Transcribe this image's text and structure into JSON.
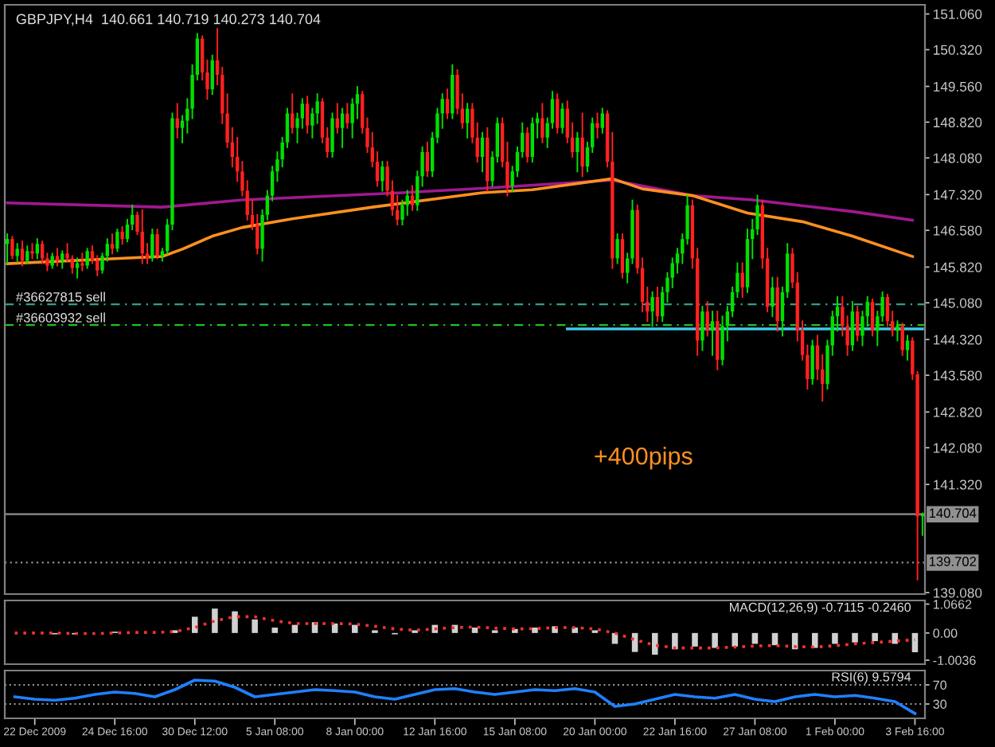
{
  "chart_data": [
    {
      "type": "candlestick",
      "title": "GBPJPY,H4  140.661 140.719 140.273 140.704",
      "categories": [
        null,
        null,
        null,
        null,
        null,
        null,
        null,
        null,
        null,
        null,
        null,
        null,
        null,
        null,
        null,
        null,
        null,
        null,
        null,
        null,
        null,
        null,
        null,
        null,
        null,
        null,
        null,
        null,
        null,
        null,
        null,
        null,
        null,
        null,
        null,
        null,
        null,
        null,
        null,
        null,
        null,
        null,
        null,
        null,
        null,
        null,
        null,
        null,
        null,
        null,
        null,
        null,
        null,
        null,
        null,
        null,
        null,
        null,
        null,
        null,
        null,
        null,
        null,
        null,
        null,
        null,
        null,
        null,
        null,
        null,
        null,
        null,
        null,
        null,
        null,
        null,
        null,
        null,
        null,
        null,
        null,
        null,
        null,
        null,
        null,
        null,
        null,
        null,
        null,
        null,
        null,
        null,
        null,
        null,
        null,
        null,
        null,
        null,
        null,
        null,
        null,
        null,
        null,
        null,
        null,
        null,
        null,
        null,
        null,
        null,
        null,
        null,
        null,
        null,
        null,
        null,
        null,
        null,
        null,
        null,
        null,
        null,
        null,
        null,
        null,
        null,
        null,
        null,
        null,
        null,
        null,
        null,
        null,
        null,
        null,
        null,
        null,
        null,
        null,
        null,
        null,
        null,
        null,
        null,
        null,
        null,
        null,
        null,
        null,
        null,
        null,
        null,
        null,
        null,
        null,
        null,
        null,
        null,
        null,
        null,
        null,
        null,
        null,
        null,
        null,
        null,
        null,
        null,
        null,
        null,
        null,
        null,
        null,
        null,
        null,
        null,
        null,
        null,
        null,
        null,
        null,
        null,
        null,
        null
      ],
      "ohlc": [
        [
          146.3,
          146.5,
          145.9,
          146.4
        ],
        [
          146.4,
          146.45,
          146.0,
          146.05
        ],
        [
          146.05,
          146.3,
          145.95,
          146.2
        ],
        [
          146.2,
          146.35,
          145.85,
          145.95
        ],
        [
          145.95,
          146.25,
          145.9,
          146.15
        ],
        [
          146.15,
          146.3,
          146.0,
          146.1
        ],
        [
          146.1,
          146.4,
          146.0,
          146.3
        ],
        [
          146.3,
          146.35,
          145.9,
          146.0
        ],
        [
          146.0,
          146.1,
          145.75,
          145.85
        ],
        [
          145.85,
          146.1,
          145.8,
          146.05
        ],
        [
          146.05,
          146.2,
          145.85,
          145.95
        ],
        [
          145.95,
          146.15,
          145.8,
          146.1
        ],
        [
          146.1,
          146.3,
          145.95,
          146.0
        ],
        [
          146.0,
          146.05,
          145.7,
          145.8
        ],
        [
          145.8,
          146.0,
          145.6,
          145.9
        ],
        [
          145.9,
          146.1,
          145.75,
          145.85
        ],
        [
          145.85,
          146.2,
          145.8,
          146.15
        ],
        [
          146.15,
          146.25,
          145.9,
          145.95
        ],
        [
          145.95,
          146.05,
          145.65,
          145.75
        ],
        [
          145.75,
          146.1,
          145.7,
          146.05
        ],
        [
          146.05,
          146.4,
          145.95,
          146.3
        ],
        [
          146.3,
          146.5,
          146.1,
          146.2
        ],
        [
          146.2,
          146.6,
          146.15,
          146.55
        ],
        [
          146.55,
          146.65,
          146.3,
          146.4
        ],
        [
          146.4,
          146.8,
          146.35,
          146.7
        ],
        [
          146.7,
          147.1,
          146.6,
          146.9
        ],
        [
          146.9,
          146.95,
          146.5,
          146.55
        ],
        [
          146.55,
          147.0,
          145.9,
          146.1
        ],
        [
          146.1,
          146.3,
          145.9,
          146.0
        ],
        [
          146.0,
          146.6,
          145.95,
          146.5
        ],
        [
          146.5,
          146.6,
          146.0,
          146.05
        ],
        [
          146.05,
          146.2,
          145.95,
          146.15
        ],
        [
          146.15,
          146.8,
          146.1,
          146.7
        ],
        [
          146.7,
          149.0,
          146.6,
          148.9
        ],
        [
          148.9,
          149.2,
          148.5,
          148.7
        ],
        [
          148.7,
          148.95,
          148.4,
          148.85
        ],
        [
          148.85,
          149.3,
          148.6,
          149.1
        ],
        [
          149.1,
          150.0,
          148.9,
          149.8
        ],
        [
          149.8,
          150.65,
          149.7,
          150.55
        ],
        [
          150.55,
          150.6,
          149.7,
          149.85
        ],
        [
          149.85,
          150.1,
          149.3,
          149.5
        ],
        [
          149.5,
          150.2,
          149.4,
          150.1
        ],
        [
          150.1,
          150.75,
          149.6,
          149.8
        ],
        [
          149.8,
          149.95,
          148.8,
          149.0
        ],
        [
          149.0,
          149.4,
          148.3,
          148.4
        ],
        [
          148.4,
          148.7,
          147.9,
          148.1
        ],
        [
          148.1,
          148.5,
          147.6,
          147.8
        ],
        [
          147.8,
          148.0,
          147.3,
          147.4
        ],
        [
          147.4,
          147.6,
          146.8,
          146.9
        ],
        [
          146.9,
          147.2,
          146.6,
          146.7
        ],
        [
          146.7,
          146.9,
          146.1,
          146.2
        ],
        [
          146.2,
          147.0,
          145.95,
          146.9
        ],
        [
          146.9,
          147.4,
          146.8,
          147.3
        ],
        [
          147.3,
          147.9,
          147.2,
          147.8
        ],
        [
          147.8,
          148.2,
          147.6,
          148.05
        ],
        [
          148.05,
          148.5,
          147.9,
          148.4
        ],
        [
          148.4,
          149.1,
          148.3,
          149.0
        ],
        [
          149.0,
          149.4,
          148.6,
          148.7
        ],
        [
          148.7,
          149.0,
          148.4,
          148.9
        ],
        [
          148.9,
          149.3,
          148.7,
          149.2
        ],
        [
          149.2,
          149.35,
          148.6,
          148.75
        ],
        [
          148.75,
          149.1,
          148.5,
          149.0
        ],
        [
          149.0,
          149.4,
          148.8,
          149.25
        ],
        [
          149.25,
          149.3,
          148.4,
          148.5
        ],
        [
          148.5,
          148.7,
          148.1,
          148.2
        ],
        [
          148.2,
          149.0,
          148.1,
          148.9
        ],
        [
          148.9,
          149.2,
          148.6,
          148.7
        ],
        [
          148.7,
          149.1,
          148.3,
          149.0
        ],
        [
          149.0,
          149.2,
          148.7,
          148.8
        ],
        [
          148.8,
          149.3,
          148.5,
          149.2
        ],
        [
          149.2,
          149.55,
          148.9,
          149.4
        ],
        [
          149.4,
          149.45,
          148.6,
          148.7
        ],
        [
          148.7,
          148.9,
          148.2,
          148.3
        ],
        [
          148.3,
          148.6,
          147.9,
          148.0
        ],
        [
          148.0,
          148.2,
          147.5,
          147.6
        ],
        [
          147.6,
          148.0,
          147.4,
          147.9
        ],
        [
          147.9,
          148.0,
          147.3,
          147.4
        ],
        [
          147.4,
          147.6,
          146.9,
          147.0
        ],
        [
          147.0,
          147.3,
          146.7,
          146.8
        ],
        [
          146.8,
          147.2,
          146.7,
          147.1
        ],
        [
          147.1,
          147.4,
          146.9,
          147.3
        ],
        [
          147.3,
          147.5,
          147.0,
          147.1
        ],
        [
          147.1,
          147.8,
          147.0,
          147.7
        ],
        [
          147.7,
          148.3,
          147.5,
          148.2
        ],
        [
          148.2,
          148.4,
          147.7,
          147.8
        ],
        [
          147.8,
          148.6,
          147.7,
          148.5
        ],
        [
          148.5,
          149.1,
          148.4,
          149.0
        ],
        [
          149.0,
          149.4,
          148.7,
          149.3
        ],
        [
          149.3,
          149.5,
          148.9,
          149.0
        ],
        [
          149.0,
          150.0,
          148.9,
          149.8
        ],
        [
          149.8,
          149.9,
          149.0,
          149.1
        ],
        [
          149.1,
          149.4,
          148.7,
          148.8
        ],
        [
          148.8,
          149.2,
          148.5,
          149.1
        ],
        [
          149.1,
          149.2,
          148.4,
          148.5
        ],
        [
          148.5,
          148.8,
          148.0,
          148.1
        ],
        [
          148.1,
          148.6,
          147.8,
          148.5
        ],
        [
          148.5,
          148.7,
          147.4,
          147.6
        ],
        [
          147.6,
          148.2,
          147.5,
          148.1
        ],
        [
          148.1,
          148.9,
          148.0,
          148.8
        ],
        [
          148.8,
          148.9,
          147.9,
          148.0
        ],
        [
          148.0,
          148.4,
          147.3,
          147.5
        ],
        [
          147.5,
          147.9,
          147.4,
          147.8
        ],
        [
          147.8,
          148.3,
          147.7,
          148.2
        ],
        [
          148.2,
          148.8,
          148.1,
          148.6
        ],
        [
          148.6,
          148.7,
          148.0,
          148.1
        ],
        [
          148.1,
          148.9,
          148.0,
          148.8
        ],
        [
          148.8,
          149.0,
          148.5,
          148.9
        ],
        [
          148.9,
          149.2,
          148.4,
          148.5
        ],
        [
          148.5,
          148.9,
          148.3,
          148.8
        ],
        [
          148.8,
          149.45,
          148.7,
          149.3
        ],
        [
          149.3,
          149.4,
          148.6,
          148.7
        ],
        [
          148.7,
          149.2,
          148.6,
          149.1
        ],
        [
          149.1,
          149.25,
          148.4,
          148.5
        ],
        [
          148.5,
          148.8,
          148.1,
          148.2
        ],
        [
          148.2,
          148.6,
          147.8,
          148.5
        ],
        [
          148.5,
          149.0,
          147.7,
          147.9
        ],
        [
          147.9,
          148.4,
          147.8,
          148.3
        ],
        [
          148.3,
          148.9,
          148.2,
          148.8
        ],
        [
          148.8,
          149.0,
          148.5,
          148.7
        ],
        [
          148.7,
          149.1,
          148.6,
          149.0
        ],
        [
          149.0,
          149.05,
          147.9,
          148.0
        ],
        [
          148.0,
          148.6,
          145.8,
          146.0
        ],
        [
          146.0,
          146.5,
          145.9,
          146.4
        ],
        [
          146.4,
          146.5,
          145.6,
          145.7
        ],
        [
          145.7,
          146.1,
          145.5,
          146.0
        ],
        [
          146.0,
          147.2,
          145.9,
          147.0
        ],
        [
          147.0,
          147.1,
          145.7,
          145.8
        ],
        [
          145.8,
          146.0,
          144.9,
          145.1
        ],
        [
          145.1,
          145.4,
          144.7,
          144.9
        ],
        [
          144.9,
          145.3,
          144.6,
          145.2
        ],
        [
          145.2,
          145.4,
          144.7,
          144.8
        ],
        [
          144.8,
          145.4,
          144.7,
          145.3
        ],
        [
          145.3,
          145.7,
          145.1,
          145.6
        ],
        [
          145.6,
          146.0,
          145.4,
          145.9
        ],
        [
          145.9,
          146.2,
          145.7,
          146.1
        ],
        [
          146.1,
          146.5,
          145.9,
          146.4
        ],
        [
          146.4,
          147.3,
          146.3,
          147.1
        ],
        [
          147.1,
          147.2,
          145.8,
          146.0
        ],
        [
          146.0,
          146.2,
          144.0,
          144.3
        ],
        [
          144.3,
          145.0,
          144.1,
          144.9
        ],
        [
          144.9,
          145.1,
          144.4,
          144.5
        ],
        [
          144.5,
          144.9,
          144.0,
          144.7
        ],
        [
          144.7,
          144.9,
          143.7,
          143.9
        ],
        [
          143.9,
          144.8,
          143.8,
          144.6
        ],
        [
          144.6,
          145.0,
          144.3,
          144.9
        ],
        [
          144.9,
          145.4,
          144.8,
          145.3
        ],
        [
          145.3,
          145.9,
          145.2,
          145.7
        ],
        [
          145.7,
          145.9,
          145.2,
          145.4
        ],
        [
          145.4,
          146.6,
          145.3,
          146.4
        ],
        [
          146.4,
          146.8,
          146.0,
          146.6
        ],
        [
          146.6,
          147.3,
          146.5,
          147.1
        ],
        [
          147.1,
          147.2,
          145.8,
          146.0
        ],
        [
          146.0,
          146.2,
          144.9,
          145.0
        ],
        [
          145.0,
          145.6,
          144.8,
          145.4
        ],
        [
          145.4,
          145.6,
          144.5,
          144.7
        ],
        [
          144.7,
          145.4,
          144.4,
          145.3
        ],
        [
          145.3,
          146.3,
          145.2,
          146.1
        ],
        [
          146.1,
          146.2,
          145.4,
          145.5
        ],
        [
          145.5,
          145.7,
          144.3,
          144.5
        ],
        [
          144.5,
          144.7,
          143.9,
          144.0
        ],
        [
          144.0,
          144.2,
          143.3,
          143.5
        ],
        [
          143.5,
          144.3,
          143.4,
          144.2
        ],
        [
          144.2,
          144.4,
          143.5,
          143.7
        ],
        [
          143.7,
          144.0,
          143.05,
          143.4
        ],
        [
          143.4,
          144.3,
          143.3,
          144.2
        ],
        [
          144.2,
          144.9,
          144.0,
          144.8
        ],
        [
          144.8,
          145.2,
          144.5,
          145.0
        ],
        [
          145.0,
          145.2,
          144.4,
          144.6
        ],
        [
          144.6,
          144.8,
          144.0,
          144.2
        ],
        [
          144.2,
          145.1,
          144.1,
          144.9
        ],
        [
          144.9,
          145.0,
          144.3,
          144.4
        ],
        [
          144.4,
          144.9,
          144.2,
          144.8
        ],
        [
          144.8,
          145.2,
          144.6,
          145.1
        ],
        [
          145.1,
          145.15,
          144.4,
          144.5
        ],
        [
          144.5,
          144.9,
          144.2,
          144.8
        ],
        [
          144.8,
          145.3,
          144.7,
          145.2
        ],
        [
          145.2,
          145.25,
          144.6,
          144.7
        ],
        [
          144.7,
          144.9,
          144.4,
          144.5
        ],
        [
          144.5,
          144.7,
          144.3,
          144.6
        ],
        [
          144.6,
          144.65,
          144.0,
          144.1
        ],
        [
          144.1,
          144.4,
          143.9,
          144.3
        ],
        [
          144.3,
          144.35,
          143.5,
          143.6
        ],
        [
          143.6,
          143.65,
          139.35,
          140.66
        ],
        [
          140.661,
          140.719,
          140.273,
          140.704
        ]
      ],
      "series": [
        {
          "type": "line",
          "color": "#a01890",
          "values": [
            147.15,
            null,
            null,
            null,
            null,
            null,
            null,
            null,
            null,
            null,
            null,
            null,
            null,
            null,
            null,
            null,
            null,
            null,
            null,
            null,
            null,
            null,
            null,
            null,
            null,
            null,
            null,
            null,
            null,
            null,
            null,
            147.06,
            null,
            null,
            null,
            null,
            null,
            null,
            null,
            null,
            null,
            null,
            null,
            null,
            null,
            null,
            null,
            147.21,
            null,
            null,
            null,
            null,
            null,
            null,
            null,
            null,
            null,
            null,
            null,
            null,
            null,
            null,
            null,
            null,
            null,
            null,
            null,
            null,
            null,
            null,
            null,
            null,
            null,
            null,
            null,
            null,
            null,
            null,
            null,
            147.36,
            null,
            null,
            null,
            null,
            null,
            null,
            null,
            null,
            null,
            null,
            null,
            null,
            null,
            null,
            null,
            147.45,
            null,
            null,
            null,
            null,
            null,
            null,
            null,
            null,
            null,
            null,
            null,
            null,
            null,
            null,
            null,
            null,
            null,
            null,
            null,
            null,
            null,
            null,
            null,
            null,
            null,
            147.62,
            null,
            null,
            null,
            null,
            null,
            null,
            null,
            null,
            null,
            null,
            null,
            null,
            null,
            null,
            null,
            147.3,
            null,
            null,
            null,
            null,
            null,
            null,
            null,
            null,
            null,
            null,
            null,
            147.21,
            null,
            null,
            null,
            null,
            null,
            null,
            null,
            null,
            null,
            null,
            null,
            null,
            null,
            null,
            null,
            null,
            null,
            null,
            null,
            146.97,
            null,
            null,
            null,
            null,
            null,
            null,
            null,
            null,
            null,
            null,
            null,
            146.79,
            null,
            null
          ]
        },
        {
          "type": "line",
          "color": "#ff9020",
          "values": [
            145.89,
            null,
            null,
            null,
            null,
            null,
            null,
            null,
            null,
            null,
            null,
            null,
            null,
            null,
            null,
            null,
            null,
            null,
            null,
            null,
            null,
            null,
            null,
            null,
            null,
            null,
            null,
            null,
            null,
            null,
            null,
            146.04,
            null,
            null,
            null,
            146.19,
            null,
            null,
            null,
            null,
            null,
            146.46,
            null,
            null,
            null,
            null,
            null,
            146.64,
            null,
            null,
            null,
            null,
            null,
            null,
            null,
            null,
            null,
            146.82,
            null,
            null,
            null,
            null,
            null,
            null,
            null,
            null,
            null,
            null,
            null,
            null,
            null,
            null,
            null,
            147.06,
            null,
            null,
            null,
            null,
            null,
            null,
            null,
            null,
            null,
            null,
            null,
            null,
            null,
            null,
            null,
            null,
            null,
            null,
            null,
            null,
            null,
            147.36,
            null,
            null,
            null,
            null,
            null,
            null,
            null,
            null,
            null,
            147.42,
            null,
            null,
            null,
            null,
            null,
            null,
            null,
            null,
            null,
            null,
            null,
            null,
            null,
            null,
            null,
            147.65,
            null,
            null,
            null,
            null,
            null,
            147.44,
            null,
            null,
            null,
            null,
            null,
            null,
            null,
            null,
            null,
            147.3,
            null,
            null,
            null,
            null,
            null,
            null,
            null,
            null,
            null,
            null,
            146.94,
            null,
            null,
            null,
            null,
            null,
            null,
            null,
            null,
            null,
            null,
            146.76,
            null,
            null,
            null,
            null,
            null,
            null,
            null,
            null,
            null,
            146.46,
            null,
            null,
            null,
            null,
            null,
            null,
            null,
            null,
            null,
            null,
            null,
            146.04,
            null,
            null
          ]
        },
        {
          "type": "line",
          "color": "#40c8e8",
          "values": [
            null,
            null,
            null,
            null,
            null,
            null,
            null,
            null,
            null,
            null,
            null,
            null,
            null,
            null,
            null,
            null,
            null,
            null,
            null,
            null,
            null,
            null,
            null,
            null,
            null,
            null,
            null,
            null,
            null,
            null,
            null,
            null,
            null,
            null,
            null,
            null,
            null,
            null,
            null,
            null,
            null,
            null,
            null,
            null,
            null,
            null,
            null,
            null,
            null,
            null,
            null,
            null,
            null,
            null,
            null,
            null,
            null,
            null,
            null,
            null,
            null,
            null,
            null,
            null,
            null,
            null,
            null,
            null,
            null,
            null,
            null,
            null,
            null,
            null,
            null,
            null,
            null,
            null,
            null,
            null,
            null,
            null,
            null,
            null,
            null,
            null,
            null,
            null,
            null,
            null,
            null,
            null,
            null,
            null,
            null,
            null,
            null,
            null,
            null,
            null,
            null,
            null,
            null,
            null,
            null,
            null,
            null,
            null,
            null,
            null,
            null,
            null,
            144.54,
            null,
            null,
            null,
            null,
            null,
            null,
            null,
            null,
            null,
            null,
            null,
            null,
            null,
            null,
            null,
            null,
            null,
            null,
            null,
            null,
            null,
            null,
            null,
            null,
            null,
            null,
            null,
            null,
            null,
            null,
            null,
            null,
            null,
            null,
            null,
            null,
            null,
            null,
            null,
            null,
            null,
            null,
            null,
            null,
            null,
            null,
            null,
            null,
            null,
            null,
            null,
            null,
            null,
            null,
            null,
            null,
            null,
            null,
            null,
            null,
            null,
            null,
            null,
            null,
            null,
            null,
            null,
            null,
            null,
            null,
            144.54
          ]
        }
      ],
      "ylim": [
        139.05,
        151.25
      ],
      "yticks": [
        {
          "value": 151.06,
          "label": "151.060"
        },
        {
          "value": 150.32,
          "label": "150.320"
        },
        {
          "value": 149.56,
          "label": "149.560"
        },
        {
          "value": 148.82,
          "label": "148.820"
        },
        {
          "value": 148.08,
          "label": "148.080"
        },
        {
          "value": 147.32,
          "label": "147.320"
        },
        {
          "value": 146.58,
          "label": "146.580"
        },
        {
          "value": 145.82,
          "label": "145.820"
        },
        {
          "value": 145.08,
          "label": "145.080"
        },
        {
          "value": 144.32,
          "label": "144.320"
        },
        {
          "value": 143.58,
          "label": "143.580"
        },
        {
          "value": 142.82,
          "label": "142.820"
        },
        {
          "value": 142.08,
          "label": "142.080"
        },
        {
          "value": 141.32,
          "label": "141.320"
        },
        {
          "value": 139.08,
          "label": "139.080"
        }
      ],
      "tick_labels": "y",
      "ref_lines": [
        {
          "axis": "y",
          "value": 145.05,
          "label": "#36627815 sell",
          "color": "#30a090",
          "line_style": "dashed"
        },
        {
          "axis": "y",
          "value": 144.62,
          "label": "#36603932 sell",
          "color": "#20c020",
          "line_style": "dashed"
        },
        {
          "axis": "y",
          "value": 140.704,
          "label": "140.704",
          "color": "#909090",
          "line_style": "solid"
        },
        {
          "axis": "y",
          "value": 139.702,
          "label": "139.702",
          "color": "#909090",
          "line_style": "dotted"
        }
      ],
      "annotations": [
        "+400pips"
      ]
    },
    {
      "type": "bar",
      "title": "MACD(12,26,9) -0.7115 -0.2460",
      "categories": [
        null,
        null,
        null,
        null,
        null,
        null,
        null,
        null,
        null,
        null,
        null,
        null,
        null,
        null,
        null,
        null,
        null,
        null,
        null,
        null,
        null,
        null,
        null,
        null,
        null,
        null,
        null,
        null,
        null,
        null,
        null,
        null,
        null,
        null,
        null,
        null,
        null,
        null,
        null,
        null,
        null,
        null,
        null,
        null,
        null,
        null
      ],
      "series": [
        {
          "type": "bar",
          "color": "#d0d0d0",
          "values": [
            null,
            0.0,
            -0.05,
            -0.05,
            0.0,
            0.05,
            null,
            0.0,
            0.1,
            0.6,
            0.9,
            0.8,
            0.5,
            0.2,
            0.3,
            0.4,
            0.35,
            0.3,
            0.1,
            -0.05,
            0.1,
            0.3,
            0.3,
            0.2,
            0.1,
            0.15,
            0.2,
            0.25,
            0.2,
            0.1,
            -0.4,
            -0.7,
            -0.8,
            -0.6,
            -0.5,
            -0.55,
            -0.5,
            -0.4,
            -0.45,
            -0.6,
            -0.55,
            -0.4,
            -0.35,
            -0.3,
            -0.4,
            -0.71
          ]
        },
        {
          "type": "line",
          "color": "#ff3030",
          "line_style": "dotted",
          "values": [
            0.0,
            0.0,
            0.0,
            -0.02,
            -0.02,
            0.0,
            0.02,
            0.02,
            0.05,
            0.2,
            0.45,
            0.6,
            0.6,
            0.45,
            0.35,
            0.35,
            0.35,
            0.33,
            0.25,
            0.15,
            0.1,
            0.15,
            0.2,
            0.22,
            0.18,
            0.15,
            0.16,
            0.2,
            0.2,
            0.15,
            0.0,
            -0.25,
            -0.45,
            -0.55,
            -0.55,
            -0.55,
            -0.52,
            -0.48,
            -0.46,
            -0.5,
            -0.52,
            -0.47,
            -0.4,
            -0.35,
            -0.3,
            -0.25
          ]
        }
      ],
      "ylim": [
        -1.15,
        1.2
      ],
      "yticks": [
        {
          "value": 1.0662,
          "label": "1.0662"
        },
        {
          "value": 0,
          "label": "0.00"
        },
        {
          "value": -1.0036,
          "label": "-1.0036"
        }
      ],
      "tick_labels": "y"
    },
    {
      "type": "line",
      "title": "RSI(6) 9.5794",
      "categories": [
        null,
        "22 Dec 2009",
        null,
        null,
        null,
        "24 Dec 16:00",
        null,
        null,
        null,
        "30 Dec 12:00",
        null,
        null,
        null,
        "5 Jan 08:00",
        null,
        null,
        null,
        "8 Jan 00:00",
        null,
        null,
        null,
        "12 Jan 16:00",
        null,
        null,
        null,
        "15 Jan 08:00",
        null,
        null,
        null,
        "20 Jan 00:00",
        null,
        null,
        null,
        "22 Jan 16:00",
        null,
        null,
        null,
        "27 Jan 08:00",
        null,
        null,
        null,
        "1 Feb 00:00",
        null,
        null,
        null,
        "3 Feb 16:00"
      ],
      "series": [
        {
          "type": "line",
          "color": "#2080ff",
          "values": [
            45,
            40,
            38,
            42,
            50,
            55,
            52,
            45,
            60,
            80,
            78,
            65,
            45,
            50,
            55,
            60,
            58,
            55,
            45,
            40,
            50,
            60,
            62,
            55,
            50,
            55,
            60,
            58,
            62,
            55,
            25,
            30,
            40,
            50,
            45,
            42,
            50,
            40,
            35,
            45,
            50,
            45,
            48,
            42,
            35,
            10
          ]
        }
      ],
      "ylim": [
        0,
        100
      ],
      "yticks": [
        70,
        30
      ],
      "grid": "y"
    }
  ]
}
